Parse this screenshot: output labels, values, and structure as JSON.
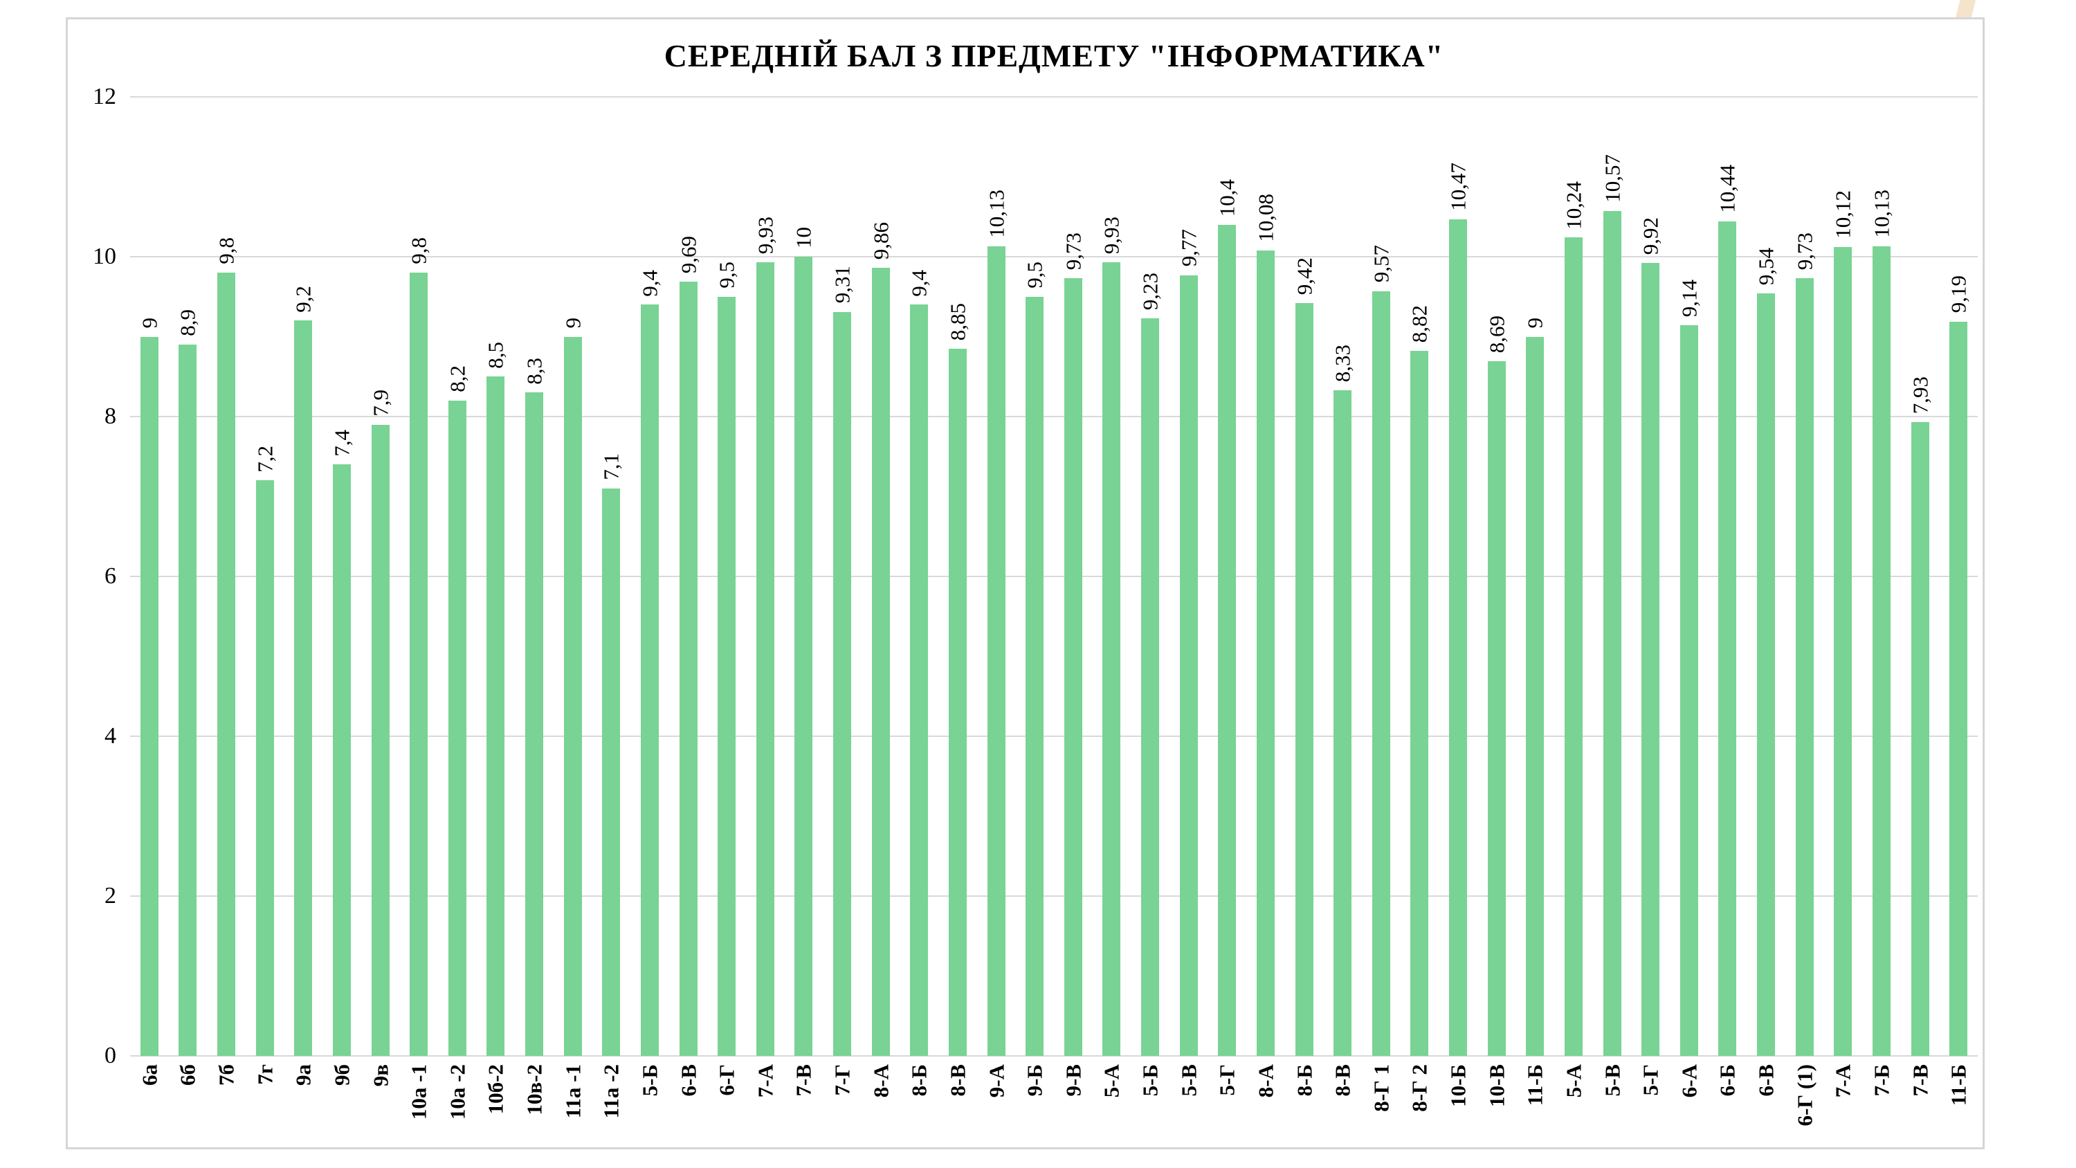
{
  "chart_data": {
    "type": "bar",
    "title": "СЕРЕДНІЙ БАЛ З ПРЕДМЕТУ \"ІНФОРМАТИКА\"",
    "xlabel": "",
    "ylabel": "",
    "ylim": [
      0,
      12
    ],
    "y_ticks": [
      0,
      2,
      4,
      6,
      8,
      10,
      12
    ],
    "grid": "horizontal",
    "legend": "none",
    "bar_value_labels_rotated": "90deg-ccw",
    "x_tick_labels_rotated": "90deg-ccw",
    "categories": [
      "6а",
      "6б",
      "7б",
      "7г",
      "9а",
      "9б",
      "9в",
      "10а -1",
      "10а -2",
      "10б-2",
      "10в-2",
      "11а -1",
      "11а -2",
      "5-Б",
      "6-В",
      "6-Г",
      "7-А",
      "7-В",
      "7-Г",
      "8-А",
      "8-Б",
      "8-В",
      "9-А",
      "9-Б",
      "9-В",
      "5-А",
      "5-Б",
      "5-В",
      "5-Г",
      "8-А",
      "8-Б",
      "8-В",
      "8-Г 1",
      "8-Г 2",
      "10-Б",
      "10-В",
      "11-Б",
      "5-А",
      "5-В",
      "5-Г",
      "6-А",
      "6-Б",
      "6-В",
      "6-Г (1)",
      "7-А",
      "7-Б",
      "7-В",
      "11-Б"
    ],
    "values": [
      9,
      8.9,
      9.8,
      7.2,
      9.2,
      7.4,
      7.9,
      9.8,
      8.2,
      8.5,
      8.3,
      9,
      7.1,
      9.4,
      9.69,
      9.5,
      9.93,
      10,
      9.31,
      9.86,
      9.4,
      8.85,
      10.13,
      9.5,
      9.73,
      9.93,
      9.23,
      9.77,
      10.4,
      10.08,
      9.42,
      8.33,
      9.57,
      8.82,
      10.47,
      8.69,
      9,
      10.24,
      10.57,
      9.92,
      9.14,
      10.44,
      9.54,
      9.73,
      10.12,
      10.13,
      7.93,
      9.19
    ],
    "value_labels": [
      "9",
      "8,9",
      "9,8",
      "7,2",
      "9,2",
      "7,4",
      "7,9",
      "9,8",
      "8,2",
      "8,5",
      "8,3",
      "9",
      "7,1",
      "9,4",
      "9,69",
      "9,5",
      "9,93",
      "10",
      "9,31",
      "9,86",
      "9,4",
      "8,85",
      "10,13",
      "9,5",
      "9,73",
      "9,93",
      "9,23",
      "9,77",
      "10,4",
      "10,08",
      "9,42",
      "8,33",
      "9,57",
      "8,82",
      "10,47",
      "8,69",
      "9",
      "10,24",
      "10,57",
      "9,92",
      "9,14",
      "10,44",
      "9,54",
      "9,73",
      "10,12",
      "10,13",
      "7,93",
      "9,19"
    ],
    "colors": {
      "bar_fill": "#79d394",
      "gridline": "#d9d9d9",
      "chart_border": "#d6d6d6",
      "title_text": "#000000",
      "label_text": "#000000",
      "corner_stripe": "#f5e3cc",
      "background": "#ffffff"
    }
  }
}
